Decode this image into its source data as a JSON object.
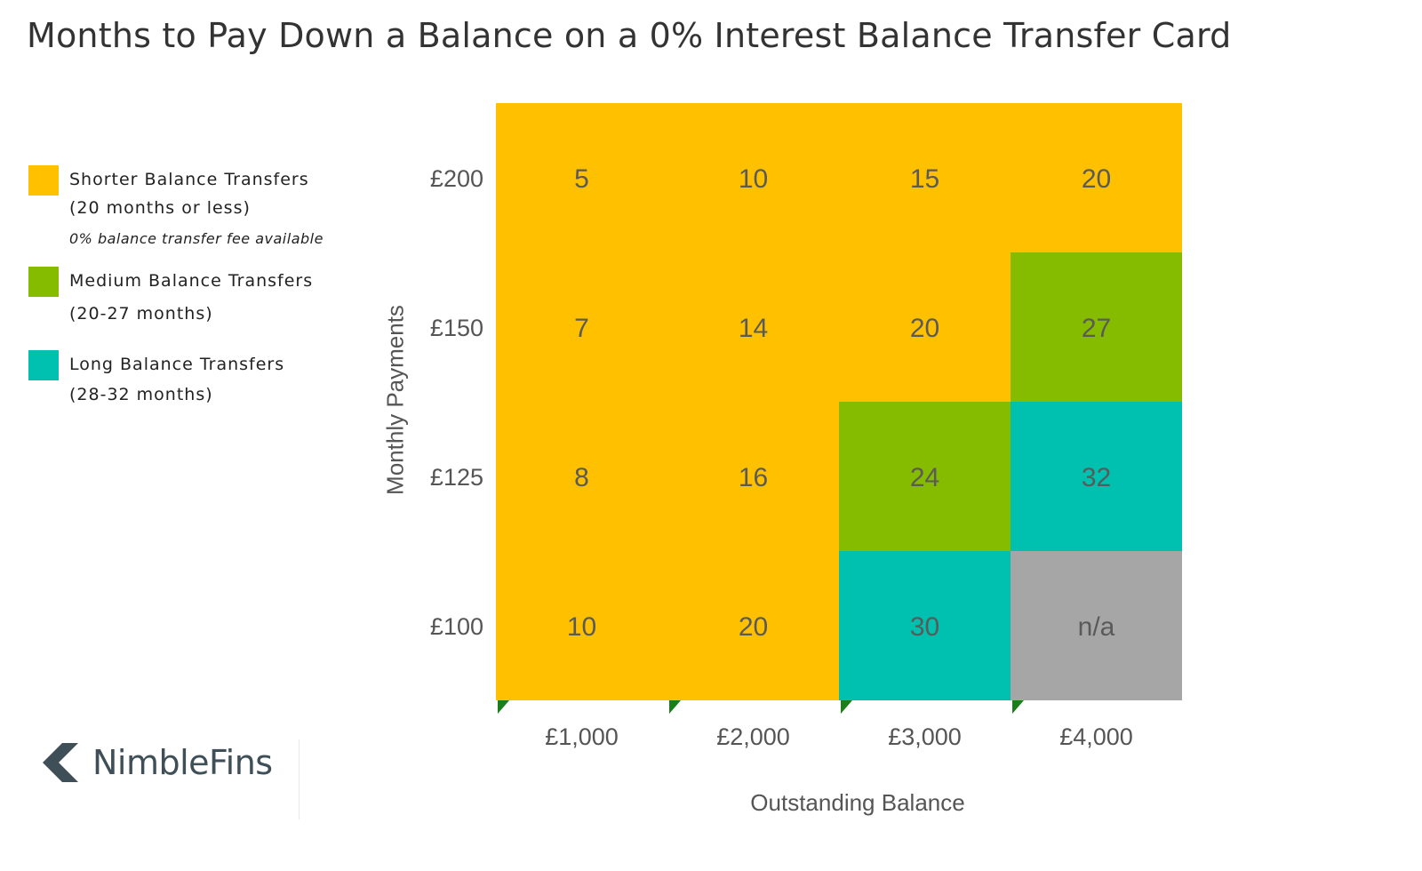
{
  "title": "Months to Pay Down a Balance on a 0% Interest Balance Transfer Card",
  "legend": {
    "items": [
      {
        "color": "#FFC000",
        "line1": "Shorter Balance Transfers",
        "line2": "(20 months or less)",
        "note": "0% balance transfer fee available"
      },
      {
        "color": "#86BC00",
        "line1": "Medium Balance Transfers",
        "line2": "(20-27 months)",
        "note": ""
      },
      {
        "color": "#00C0B0",
        "line1": "Long Balance Transfers",
        "line2": "(28-32 months)",
        "note": ""
      }
    ]
  },
  "chart_data": {
    "type": "heatmap",
    "title": "Months to Pay Down a Balance on a 0% Interest Balance Transfer Card",
    "xlabel": "Outstanding Balance",
    "ylabel": "Monthly Payments",
    "x_categories": [
      "£1,000",
      "£2,000",
      "£3,000",
      "£4,000"
    ],
    "y_categories": [
      "£200",
      "£150",
      "£125",
      "£100"
    ],
    "cells": [
      [
        "5",
        "10",
        "15",
        "20"
      ],
      [
        "7",
        "14",
        "20",
        "27"
      ],
      [
        "8",
        "16",
        "24",
        "32"
      ],
      [
        "10",
        "20",
        "30",
        "n/a"
      ]
    ],
    "cell_categories": [
      [
        "short",
        "short",
        "short",
        "short"
      ],
      [
        "short",
        "short",
        "short",
        "medium"
      ],
      [
        "short",
        "short",
        "medium",
        "long"
      ],
      [
        "short",
        "short",
        "long",
        "na"
      ]
    ],
    "category_colors": {
      "short": "#FFC000",
      "medium": "#86BC00",
      "long": "#00C0B0",
      "na": "#A6A6A6"
    },
    "grid": false
  },
  "logo": {
    "text": "NimbleFins"
  }
}
